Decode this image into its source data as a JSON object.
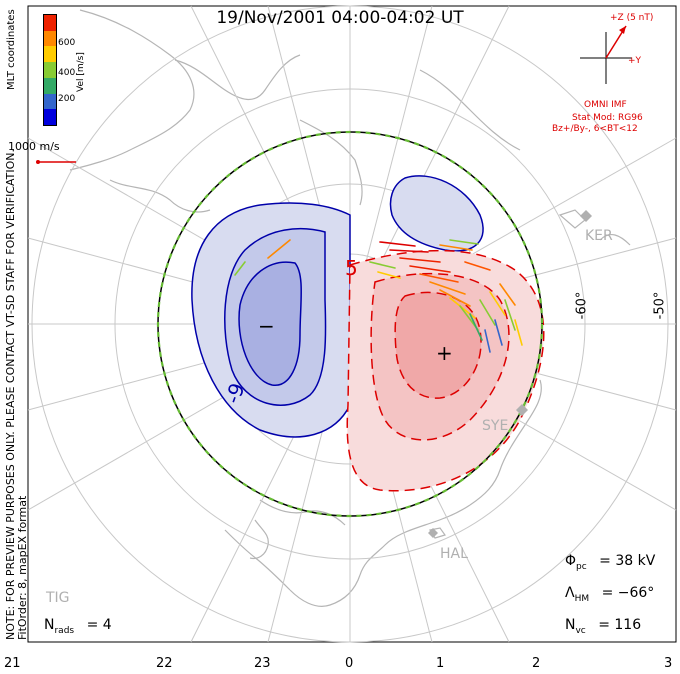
{
  "title": "19/Nov/2001 04:00-04:02 UT",
  "coordinates": "MLT coordinates",
  "note_line1": "NOTE: FOR PREVIEW PURPOSES ONLY. PLEASE CONTACT VT-SD STAFF FOR VERIFICATION.",
  "note_line2": "FitOrder: 8, mapEX format",
  "colorbar": {
    "title": "Vel [m/s]",
    "ticks": [
      "600",
      "400",
      "200"
    ],
    "colors": [
      "#0000dd",
      "#3366cc",
      "#33aa66",
      "#88cc33",
      "#ffcc00",
      "#ff8800",
      "#ee2200"
    ]
  },
  "scale_label": "1000 m/s",
  "imf": {
    "z_label": "+Z (5 nT)",
    "y_label": "+Y",
    "source": "OMNI IMF",
    "model": "Stat Mod: RG96",
    "condition": "Bz+/By-, 6<BT<12"
  },
  "stations": [
    "KER",
    "SYE",
    "HAL",
    "TIG"
  ],
  "latitude_labels": [
    "-60°",
    "-50°"
  ],
  "contour_labels": [
    "-9",
    "5"
  ],
  "markers": {
    "min": "−",
    "max": "+"
  },
  "stats": {
    "phi_label": "Φ",
    "phi_sub": "pc",
    "phi_value": "= 38 kV",
    "lambda_label": "Λ",
    "lambda_sub": "HM",
    "lambda_value": "= −66°",
    "nvc_label": "N",
    "nvc_sub": "vc",
    "nvc_value": "= 116",
    "nrads_label": "N",
    "nrads_sub": "rads",
    "nrads_value": "= 4"
  },
  "mlt_labels": [
    "21",
    "22",
    "23",
    "0",
    "1",
    "2",
    "3"
  ],
  "colors": {
    "positive": "#dd0000",
    "negative": "#0000aa",
    "hmb": "#66bb33"
  }
}
